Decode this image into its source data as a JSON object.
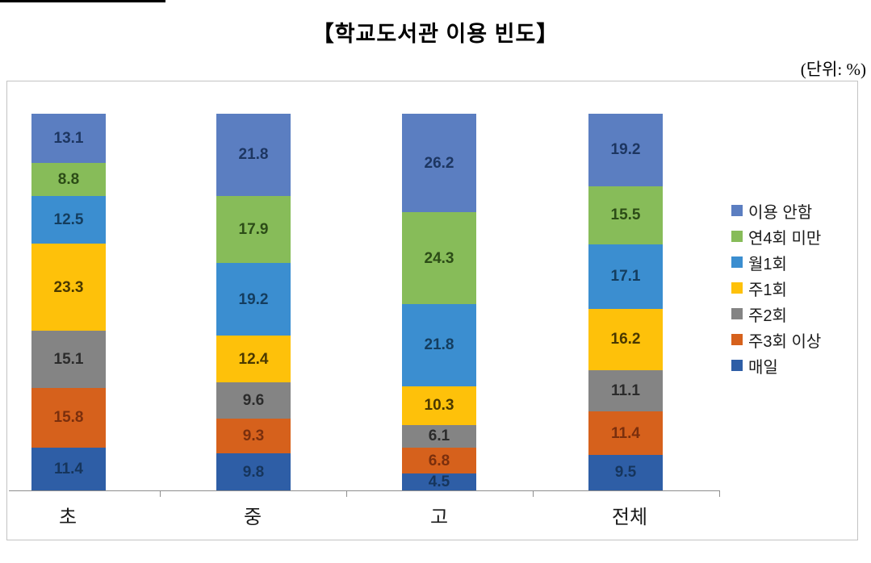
{
  "title": "【학교도서관 이용 빈도】",
  "unit_label": "(단위:  %)",
  "chart_data": {
    "type": "bar",
    "subtype": "stacked-column-100",
    "title": "【학교도서관 이용 빈도】",
    "unit": "%",
    "categories": [
      "초",
      "중",
      "고",
      "전체"
    ],
    "series": [
      {
        "name": "매일",
        "color": "#2e5ea6",
        "label_color": "#16355c",
        "values": [
          11.4,
          9.8,
          4.5,
          9.5
        ]
      },
      {
        "name": "주3회 이상",
        "color": "#d6611c",
        "label_color": "#7a2f0d",
        "values": [
          15.8,
          9.3,
          6.8,
          11.4
        ]
      },
      {
        "name": "주2회",
        "color": "#848484",
        "label_color": "#2b2b2b",
        "values": [
          15.1,
          9.6,
          6.1,
          11.1
        ]
      },
      {
        "name": "주1회",
        "color": "#fec10a",
        "label_color": "#4a3800",
        "values": [
          23.3,
          12.4,
          10.3,
          16.2
        ]
      },
      {
        "name": "월1회",
        "color": "#3b8ed0",
        "label_color": "#143d5e",
        "values": [
          12.5,
          19.2,
          21.8,
          17.1
        ]
      },
      {
        "name": "연4회 미만",
        "color": "#87bc59",
        "label_color": "#2c4c17",
        "values": [
          8.8,
          17.9,
          24.3,
          15.5
        ]
      },
      {
        "name": "이용 안함",
        "color": "#5b7ec1",
        "label_color": "#1d3661",
        "values": [
          13.1,
          21.8,
          26.2,
          19.2
        ]
      }
    ],
    "stack_order_note": "series listed bottom-to-top of each column",
    "legend": [
      "이용 안함",
      "연4회 미만",
      "월1회",
      "주1회",
      "주2회",
      "주3회 이상",
      "매일"
    ],
    "legend_position": "right",
    "ylim": [
      0,
      100
    ],
    "grid": false,
    "data_labels": "inside-center"
  }
}
